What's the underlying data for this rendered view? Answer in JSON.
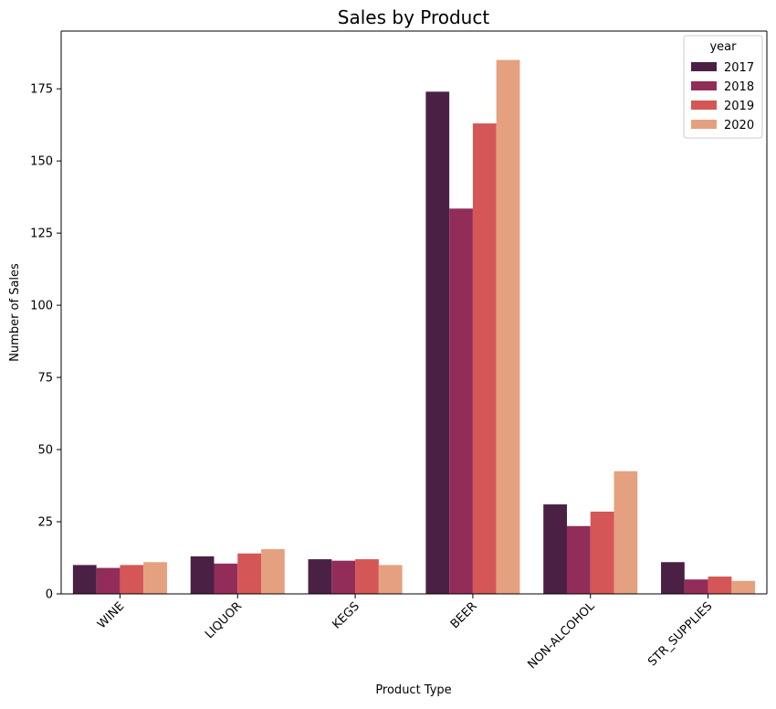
{
  "chart_data": {
    "type": "bar",
    "title": "Sales by Product",
    "xlabel": "Product Type",
    "ylabel": "Number of Sales",
    "categories": [
      "WINE",
      "LIQUOR",
      "KEGS",
      "BEER",
      "NON-ALCOHOL",
      "STR_SUPPLIES"
    ],
    "series": [
      {
        "name": "2017",
        "color": "#4a2145",
        "values": [
          10.0,
          13.0,
          12.0,
          174.0,
          31.0,
          11.0
        ]
      },
      {
        "name": "2018",
        "color": "#922d5a",
        "values": [
          9.0,
          10.5,
          11.5,
          133.5,
          23.5,
          5.0
        ]
      },
      {
        "name": "2019",
        "color": "#d55656",
        "values": [
          10.0,
          14.0,
          12.0,
          163.0,
          28.5,
          6.0
        ]
      },
      {
        "name": "2020",
        "color": "#e5a17f",
        "values": [
          11.0,
          15.5,
          10.0,
          185.0,
          42.5,
          4.5
        ]
      }
    ],
    "ylim": [
      0,
      195
    ],
    "yticks": [
      0,
      25,
      50,
      75,
      100,
      125,
      150,
      175
    ],
    "grid": false,
    "legend": {
      "title": "year",
      "position": "top-right"
    }
  }
}
